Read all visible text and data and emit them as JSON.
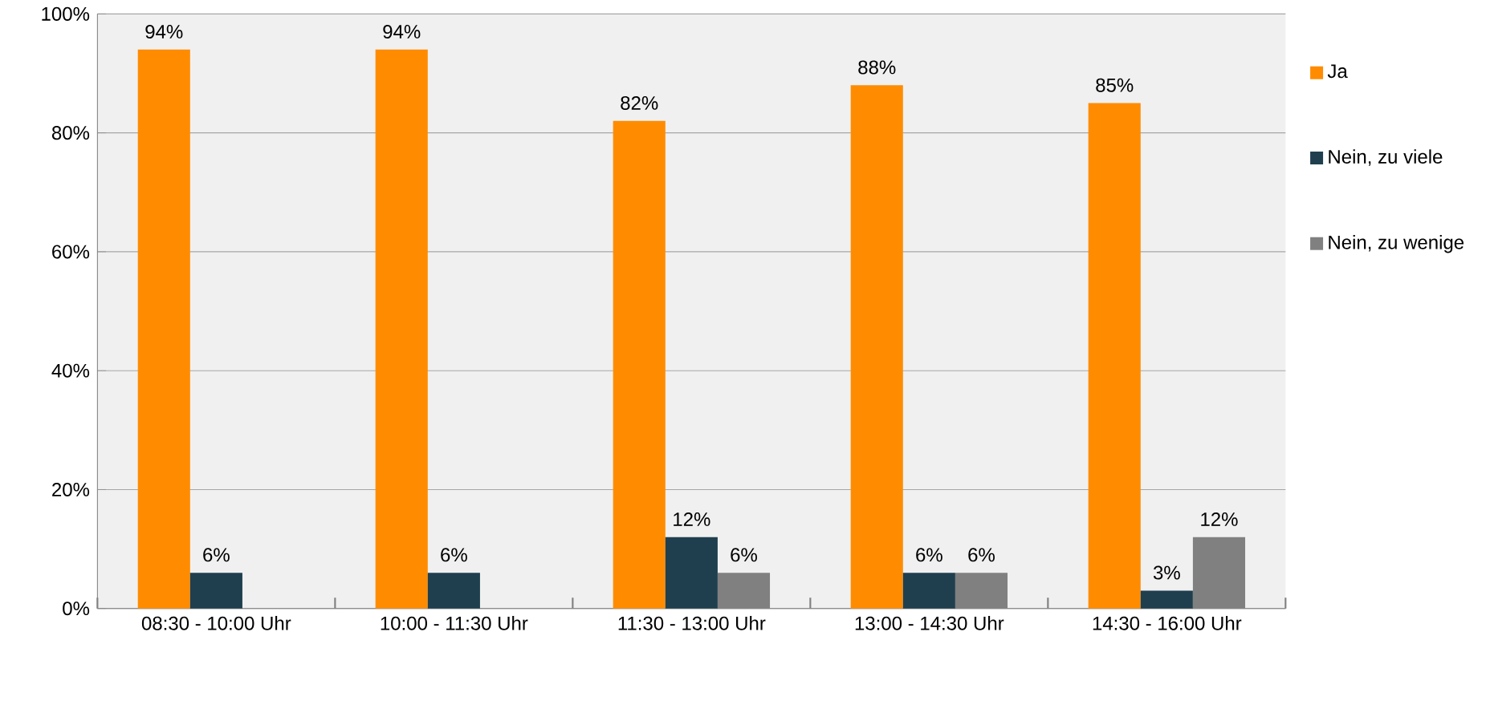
{
  "chart_data": {
    "type": "bar",
    "categories": [
      "08:30 - 10:00 Uhr",
      "10:00 - 11:30 Uhr",
      "11:30 - 13:00 Uhr",
      "13:00 - 14:30 Uhr",
      "14:30 - 16:00 Uhr"
    ],
    "series": [
      {
        "name": "Ja",
        "color": "#ff8c00",
        "values": [
          94,
          94,
          82,
          88,
          85
        ],
        "value_labels": [
          "94%",
          "94%",
          "82%",
          "88%",
          "85%"
        ]
      },
      {
        "name": "Nein, zu viele",
        "color": "#1f3f4f",
        "values": [
          6,
          6,
          12,
          6,
          3
        ],
        "value_labels": [
          "6%",
          "6%",
          "12%",
          "6%",
          "3%"
        ]
      },
      {
        "name": "Nein, zu wenige",
        "color": "#808080",
        "values": [
          null,
          null,
          6,
          6,
          12
        ],
        "value_labels": [
          null,
          null,
          "6%",
          "6%",
          "12%"
        ]
      }
    ],
    "ylim": [
      0,
      100
    ],
    "yticks": [
      {
        "value": 0,
        "label": "0%"
      },
      {
        "value": 20,
        "label": "20%"
      },
      {
        "value": 40,
        "label": "40%"
      },
      {
        "value": 60,
        "label": "60%"
      },
      {
        "value": 80,
        "label": "80%"
      },
      {
        "value": 100,
        "label": "100%"
      }
    ],
    "grid": "y",
    "legend": "right"
  }
}
